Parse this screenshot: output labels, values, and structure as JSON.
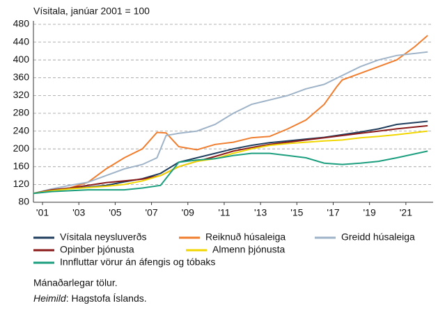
{
  "chart_data": {
    "type": "line",
    "title": "Vísitala, janúar 2001 = 100",
    "xlim": [
      2001,
      2023
    ],
    "xticks": [
      {
        "value": 2001.5,
        "label": "'01"
      },
      {
        "value": 2003.5,
        "label": "'03"
      },
      {
        "value": 2005.5,
        "label": "'05"
      },
      {
        "value": 2007.5,
        "label": "'07"
      },
      {
        "value": 2009.5,
        "label": "'09"
      },
      {
        "value": 2011.5,
        "label": "'11"
      },
      {
        "value": 2013.5,
        "label": "'13"
      },
      {
        "value": 2015.5,
        "label": "'15"
      },
      {
        "value": 2017.5,
        "label": "'17"
      },
      {
        "value": 2019.5,
        "label": "'19"
      },
      {
        "value": 2021.5,
        "label": "'21"
      }
    ],
    "ylim": [
      80,
      480
    ],
    "yticks": [
      80,
      120,
      160,
      200,
      240,
      280,
      320,
      360,
      400,
      440,
      480
    ],
    "grid": true,
    "series": [
      {
        "name": "Vísitala neysluverðs",
        "color": "#1f3d5c",
        "x": [
          2001,
          2002,
          2003,
          2004,
          2005,
          2006,
          2007,
          2008,
          2009,
          2010,
          2011,
          2012,
          2013,
          2014,
          2015,
          2016,
          2017,
          2018,
          2019,
          2020,
          2021,
          2022.7
        ],
        "values": [
          100,
          108,
          111,
          114,
          118,
          126,
          133,
          145,
          170,
          180,
          190,
          200,
          208,
          214,
          218,
          222,
          226,
          232,
          238,
          245,
          255,
          262
        ]
      },
      {
        "name": "Reiknuð húsaleiga",
        "color": "#f07d2e",
        "x": [
          2001,
          2002,
          2003,
          2004,
          2005,
          2006,
          2007,
          2007.8,
          2008.3,
          2009,
          2010,
          2011,
          2012,
          2013,
          2014,
          2015,
          2016,
          2017,
          2017.7,
          2018,
          2019,
          2020,
          2021,
          2022,
          2022.7
        ],
        "values": [
          100,
          105,
          112,
          125,
          155,
          180,
          200,
          237,
          236,
          205,
          198,
          210,
          215,
          225,
          228,
          245,
          265,
          300,
          340,
          355,
          370,
          385,
          400,
          430,
          455
        ]
      },
      {
        "name": "Greidd húsaleiga",
        "color": "#9fb3c8",
        "x": [
          2001,
          2002,
          2003,
          2004,
          2005,
          2006,
          2007,
          2007.8,
          2008.3,
          2009,
          2010,
          2011,
          2012,
          2013,
          2014,
          2015,
          2016,
          2017,
          2018,
          2019,
          2020,
          2021,
          2022.7
        ],
        "values": [
          100,
          110,
          118,
          125,
          140,
          155,
          165,
          180,
          230,
          235,
          240,
          255,
          280,
          300,
          310,
          320,
          335,
          345,
          365,
          385,
          400,
          410,
          418
        ]
      },
      {
        "name": "Opinber þjónusta",
        "color": "#8b1a1a",
        "x": [
          2001,
          2002,
          2003,
          2004,
          2005,
          2006,
          2007,
          2008,
          2009,
          2010,
          2011,
          2012,
          2013,
          2014,
          2015,
          2016,
          2017,
          2018,
          2019,
          2020,
          2021,
          2022.7
        ],
        "values": [
          100,
          108,
          112,
          118,
          124,
          128,
          132,
          140,
          160,
          172,
          183,
          195,
          203,
          210,
          215,
          220,
          225,
          230,
          235,
          240,
          245,
          252
        ]
      },
      {
        "name": "Almenn þjónusta",
        "color": "#f2d600",
        "x": [
          2001,
          2002,
          2003,
          2004,
          2005,
          2006,
          2007,
          2008,
          2009,
          2010,
          2011,
          2012,
          2013,
          2014,
          2015,
          2016,
          2017,
          2018,
          2019,
          2020,
          2021,
          2022.7
        ],
        "values": [
          100,
          106,
          110,
          113,
          116,
          120,
          128,
          140,
          160,
          172,
          178,
          190,
          200,
          208,
          212,
          215,
          218,
          220,
          225,
          228,
          232,
          240
        ]
      },
      {
        "name": "Innfluttar vörur án áfengis og tóbaks",
        "color": "#1a9e7e",
        "x": [
          2001,
          2002,
          2003,
          2004,
          2005,
          2006,
          2007,
          2008,
          2009,
          2010,
          2011,
          2012,
          2013,
          2014,
          2015,
          2016,
          2017,
          2018,
          2019,
          2020,
          2021,
          2022.7
        ],
        "values": [
          100,
          104,
          106,
          108,
          108,
          108,
          112,
          118,
          170,
          175,
          178,
          185,
          190,
          190,
          185,
          180,
          168,
          165,
          168,
          172,
          180,
          195
        ]
      }
    ],
    "notes": [
      "Mánaðarlegar tölur.",
      "Heimild",
      ": Hagstofa Íslands."
    ]
  }
}
